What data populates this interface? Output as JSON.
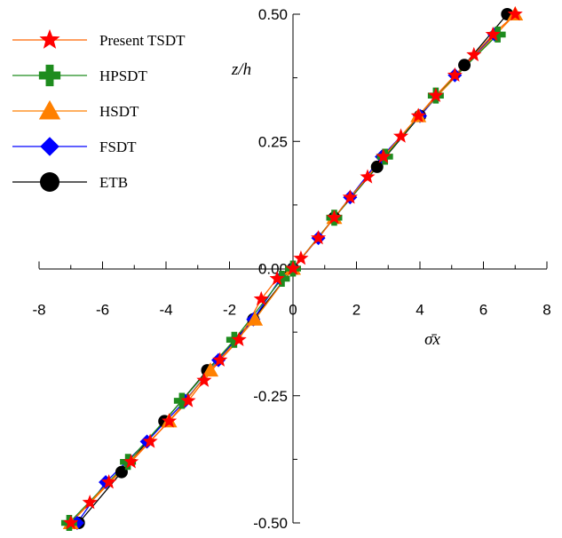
{
  "chart_data": {
    "type": "line",
    "xlabel": "σ̄x",
    "ylabel": "z/h",
    "xlim": [
      -8,
      8
    ],
    "ylim": [
      -0.5,
      0.5
    ],
    "x_ticks": [
      "-8",
      "-6",
      "-4",
      "-2",
      "0",
      "2",
      "4",
      "6",
      "8"
    ],
    "y_ticks": [
      "-0.50",
      "-0.25",
      "0.00",
      "0.25",
      "0.50"
    ],
    "grid": false,
    "legend_position": "top-left",
    "series": [
      {
        "name": "Present TSDT",
        "color": "#ff0000",
        "line_color": "#ff6600",
        "marker": "star",
        "x": [
          -7.0,
          -6.4,
          -5.8,
          -5.1,
          -4.5,
          -3.9,
          -3.3,
          -2.8,
          -2.3,
          -1.7,
          -1.0,
          -0.5,
          0.0,
          0.25,
          0.8,
          1.3,
          1.8,
          2.35,
          2.85,
          3.4,
          3.95,
          4.5,
          5.1,
          5.7,
          6.3,
          7.0
        ],
        "y": [
          -0.5,
          -0.46,
          -0.42,
          -0.38,
          -0.34,
          -0.3,
          -0.26,
          -0.22,
          -0.18,
          -0.14,
          -0.06,
          -0.02,
          0.0,
          0.02,
          0.06,
          0.1,
          0.14,
          0.18,
          0.22,
          0.26,
          0.3,
          0.34,
          0.38,
          0.42,
          0.46,
          0.5
        ]
      },
      {
        "name": "HPSDT",
        "color": "#1e8c1e",
        "line_color": "#1e8c1e",
        "marker": "plus",
        "x": [
          -7.05,
          -5.2,
          -3.5,
          -1.85,
          -0.35,
          0.0,
          1.3,
          2.9,
          4.5,
          6.45
        ],
        "y": [
          -0.5,
          -0.38,
          -0.26,
          -0.14,
          -0.02,
          0.0,
          0.1,
          0.22,
          0.34,
          0.46
        ]
      },
      {
        "name": "HSDT",
        "color": "#ff8000",
        "line_color": "#ff8000",
        "marker": "triangle",
        "x": [
          -7.0,
          -3.9,
          -2.6,
          -1.2,
          0.0,
          1.3,
          3.95,
          7.0
        ],
        "y": [
          -0.5,
          -0.3,
          -0.2,
          -0.1,
          0.0,
          0.1,
          0.3,
          0.5
        ]
      },
      {
        "name": "FSDT",
        "color": "#0000ff",
        "line_color": "#0000ff",
        "marker": "diamond",
        "x": [
          -6.8,
          -5.9,
          -4.6,
          -3.4,
          -2.35,
          -1.25,
          -0.4,
          0.0,
          0.8,
          1.8,
          2.8,
          4.0,
          5.1,
          6.35
        ],
        "y": [
          -0.5,
          -0.42,
          -0.34,
          -0.26,
          -0.18,
          -0.1,
          -0.02,
          0.0,
          0.06,
          0.14,
          0.22,
          0.3,
          0.38,
          0.46
        ]
      },
      {
        "name": "ETB",
        "color": "#000000",
        "line_color": "#000000",
        "marker": "circle",
        "x": [
          -6.75,
          -5.4,
          -4.05,
          -2.7,
          -1.25,
          0.0,
          1.3,
          2.65,
          4.0,
          5.4,
          6.75
        ],
        "y": [
          -0.5,
          -0.4,
          -0.3,
          -0.2,
          -0.1,
          0.0,
          0.1,
          0.2,
          0.3,
          0.4,
          0.5
        ]
      }
    ]
  }
}
